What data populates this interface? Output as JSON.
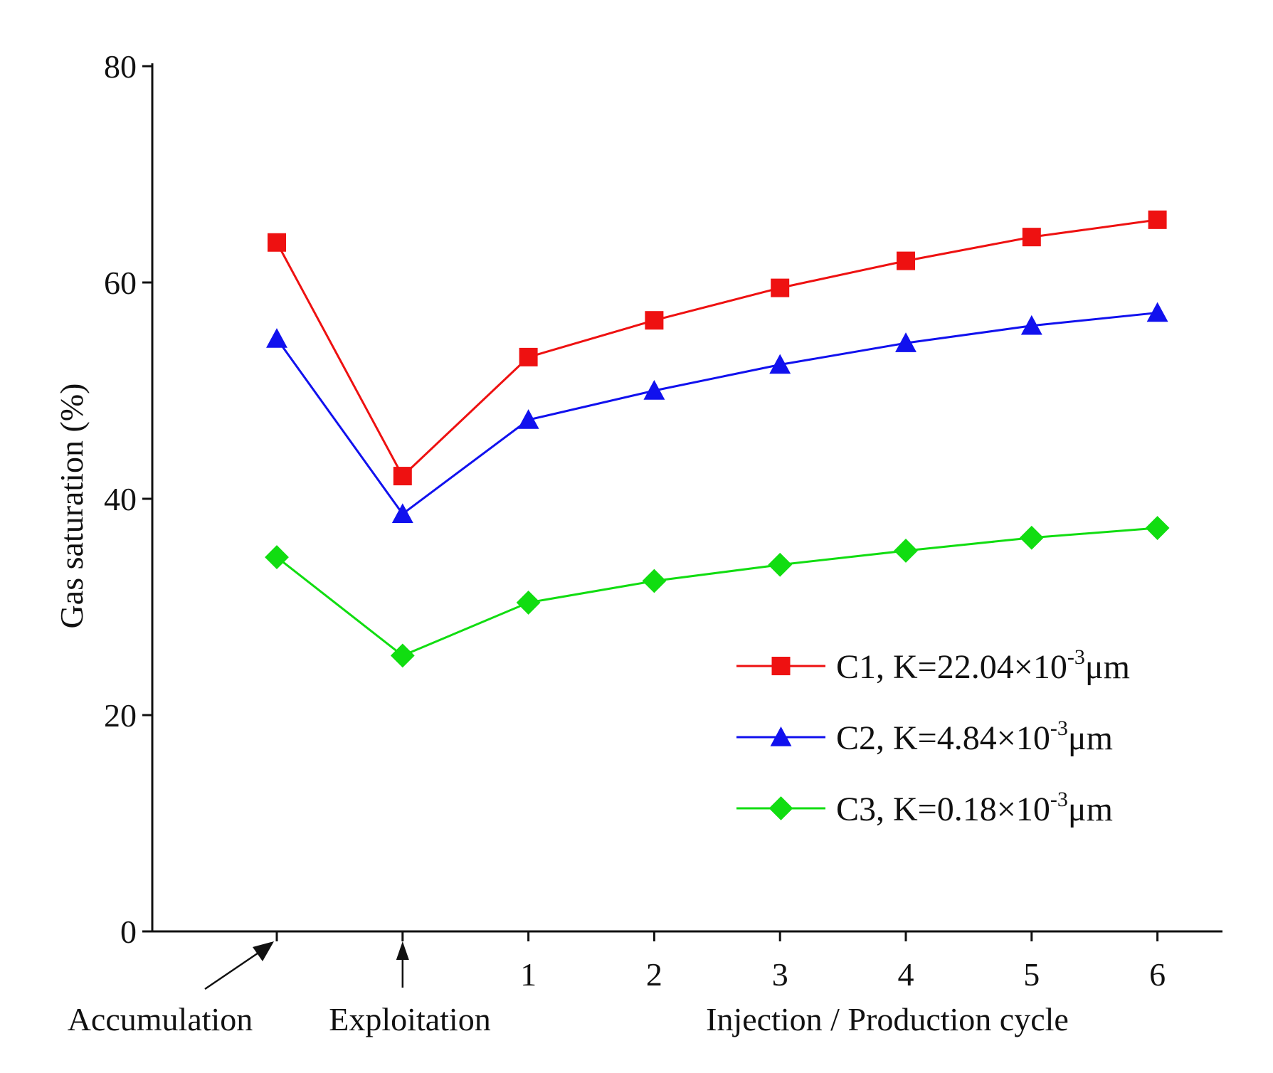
{
  "chart_data": {
    "type": "line",
    "title": "",
    "xlabel": "Injection / Production cycle",
    "ylabel": "Gas saturation (%)",
    "ylim": [
      0,
      80
    ],
    "yticks": [
      "0",
      "20",
      "40",
      "60",
      "80"
    ],
    "categories": [
      "Accumulation",
      "Exploitation",
      "1",
      "2",
      "3",
      "4",
      "5",
      "6"
    ],
    "tick_labels": [
      "",
      "",
      "1",
      "2",
      "3",
      "4",
      "5",
      "6"
    ],
    "stage_labels": {
      "accumulation": "Accumulation",
      "exploitation": "Exploitation"
    },
    "grid": false,
    "legend_position": "center-right",
    "series": [
      {
        "name": "C1, K=22.04×10-3μm",
        "label_main": "C1, K=22.04×10",
        "label_sup": "-3",
        "label_unit": "μm",
        "marker": "square",
        "color": "#ee1111",
        "values": [
          63.7,
          42.1,
          53.1,
          56.5,
          59.5,
          62.0,
          64.2,
          65.8
        ]
      },
      {
        "name": "C2, K=4.84×10-3μm",
        "label_main": "C2, K=4.84×10",
        "label_sup": "-3",
        "label_unit": "μm",
        "marker": "triangle",
        "color": "#1111ee",
        "values": [
          54.8,
          38.6,
          47.3,
          50.0,
          52.4,
          54.4,
          56.0,
          57.2
        ]
      },
      {
        "name": "C3, K=0.18×10-3μm",
        "label_main": "C3, K=0.18×10",
        "label_sup": "-3",
        "label_unit": "μm",
        "marker": "diamond",
        "color": "#11dd11",
        "values": [
          34.6,
          25.5,
          30.4,
          32.4,
          33.9,
          35.2,
          36.4,
          37.3
        ]
      }
    ]
  }
}
